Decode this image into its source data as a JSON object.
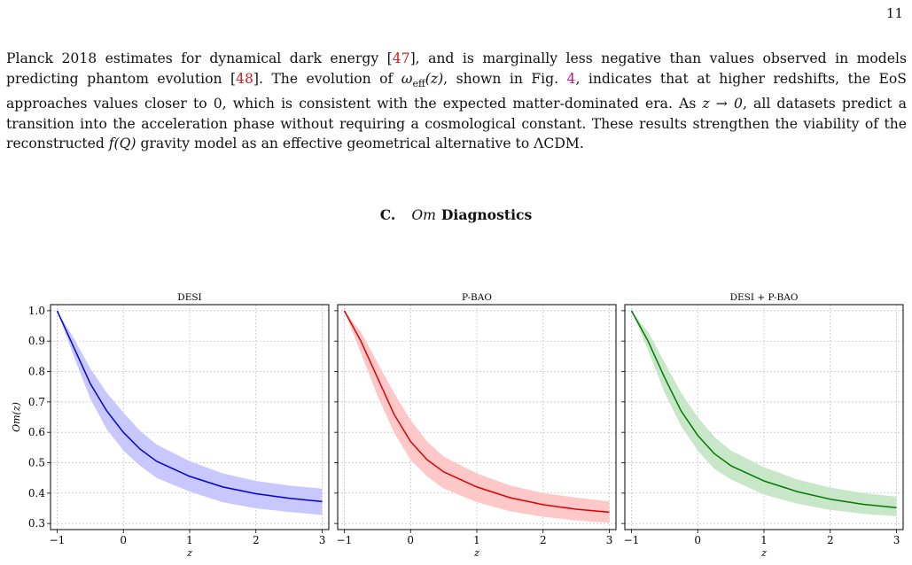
{
  "page_number": "11",
  "paragraph": {
    "p1": "Planck 2018 estimates for dynamical dark energy [",
    "ref1": "47",
    "p2": "], and is marginally less negative than values observed in models predicting phantom evolution [",
    "ref2": "48",
    "p3": "]. The evolution of ",
    "omega_sym": "ω",
    "omega_sub": "eff",
    "omega_arg": "(z)",
    "p4": ", shown in Fig. ",
    "fig_ref": "4",
    "p5": ", indicates that at higher redshifts, the EoS approaches values closer to 0, which is consistent with the expected matter-dominated era. As ",
    "z_limit": "z → 0",
    "p6": ", all datasets predict a transition into the acceleration phase without requiring a cosmological constant. These results strengthen the viability of the reconstructed ",
    "fQ": "f(Q)",
    "p7": " gravity model as an effective geometrical alternative to ΛCDM."
  },
  "section": {
    "number": "C.",
    "om": "Om",
    "title": "Diagnostics"
  },
  "chart_data": [
    {
      "type": "line",
      "title": "DESI",
      "xlabel": "z",
      "ylabel": "Om(z)",
      "color": "#0000dd",
      "band_color": "#c8c8ff",
      "xlim": [
        -1.1,
        3.1
      ],
      "ylim": [
        0.28,
        1.02
      ],
      "xticks": [
        "−1",
        "0",
        "1",
        "2",
        "3"
      ],
      "yticks": [
        "0.3",
        "0.4",
        "0.5",
        "0.6",
        "0.7",
        "0.8",
        "0.9",
        "1.0"
      ],
      "x": [
        -1.0,
        -0.75,
        -0.5,
        -0.25,
        0.0,
        0.25,
        0.5,
        1.0,
        1.5,
        2.0,
        2.5,
        3.0
      ],
      "y": [
        1.0,
        0.88,
        0.76,
        0.67,
        0.6,
        0.545,
        0.505,
        0.455,
        0.42,
        0.398,
        0.383,
        0.372
      ],
      "y_lower": [
        1.0,
        0.85,
        0.71,
        0.61,
        0.54,
        0.49,
        0.45,
        0.405,
        0.37,
        0.35,
        0.338,
        0.328
      ],
      "y_upper": [
        1.0,
        0.91,
        0.81,
        0.73,
        0.665,
        0.605,
        0.56,
        0.505,
        0.465,
        0.44,
        0.425,
        0.415
      ]
    },
    {
      "type": "line",
      "title": "P-BAO",
      "xlabel": "z",
      "ylabel": "",
      "color": "#dd0000",
      "band_color": "#ffc8c8",
      "xlim": [
        -1.1,
        3.1
      ],
      "ylim": [
        0.28,
        1.02
      ],
      "xticks": [
        "−1",
        "0",
        "1",
        "2",
        "3"
      ],
      "yticks": [],
      "x": [
        -1.0,
        -0.75,
        -0.5,
        -0.25,
        0.0,
        0.25,
        0.5,
        1.0,
        1.5,
        2.0,
        2.5,
        3.0
      ],
      "y": [
        1.0,
        0.9,
        0.78,
        0.66,
        0.57,
        0.51,
        0.47,
        0.42,
        0.385,
        0.362,
        0.347,
        0.337
      ],
      "y_lower": [
        1.0,
        0.86,
        0.72,
        0.6,
        0.51,
        0.455,
        0.415,
        0.37,
        0.34,
        0.322,
        0.31,
        0.302
      ],
      "y_upper": [
        1.0,
        0.93,
        0.83,
        0.73,
        0.64,
        0.57,
        0.52,
        0.465,
        0.425,
        0.4,
        0.385,
        0.373
      ]
    },
    {
      "type": "line",
      "title": "DESI + P-BAO",
      "xlabel": "z",
      "ylabel": "",
      "color": "#007a00",
      "band_color": "#c8e6c8",
      "xlim": [
        -1.1,
        3.1
      ],
      "ylim": [
        0.28,
        1.02
      ],
      "xticks": [
        "−1",
        "0",
        "1",
        "2",
        "3"
      ],
      "yticks": [],
      "x": [
        -1.0,
        -0.75,
        -0.5,
        -0.25,
        0.0,
        0.25,
        0.5,
        1.0,
        1.5,
        2.0,
        2.5,
        3.0
      ],
      "y": [
        1.0,
        0.9,
        0.78,
        0.67,
        0.59,
        0.53,
        0.49,
        0.44,
        0.405,
        0.38,
        0.363,
        0.352
      ],
      "y_lower": [
        1.0,
        0.87,
        0.73,
        0.62,
        0.54,
        0.48,
        0.445,
        0.395,
        0.365,
        0.345,
        0.332,
        0.324
      ],
      "y_upper": [
        1.0,
        0.93,
        0.83,
        0.73,
        0.65,
        0.585,
        0.54,
        0.485,
        0.445,
        0.418,
        0.4,
        0.388
      ]
    }
  ]
}
